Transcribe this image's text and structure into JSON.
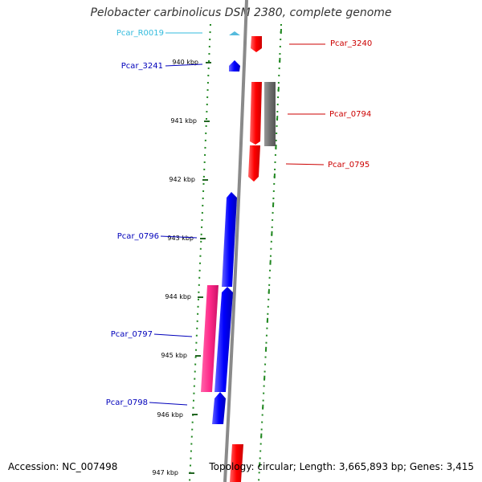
{
  "title": "Pelobacter carbinolicus DSM 2380, complete genome",
  "accession": "Accession: NC_007498",
  "summary": "Topology: circular; Length: 3,665,893 bp; Genes: 3,415",
  "ticks": [
    "940 kbp",
    "941 kbp",
    "942 kbp",
    "943 kbp",
    "944 kbp",
    "945 kbp",
    "946 kbp",
    "947 kbp"
  ],
  "labels": [
    {
      "text": "Pcar_R0019",
      "color": "#33bbdd"
    },
    {
      "text": "Pcar_3241",
      "color": "#0000bb"
    },
    {
      "text": "Pcar_0796",
      "color": "#0000bb"
    },
    {
      "text": "Pcar_0797",
      "color": "#0000bb"
    },
    {
      "text": "Pcar_0798",
      "color": "#0000bb"
    },
    {
      "text": "Pcar_3240",
      "color": "#cc0000"
    },
    {
      "text": "Pcar_0794",
      "color": "#cc0000"
    },
    {
      "text": "Pcar_0795",
      "color": "#cc0000"
    }
  ],
  "colors": {
    "forward_gene": "#ff0000",
    "reverse_gene": "#0000ff",
    "pink_gene": "#ff2a8a",
    "gray_gene": "#707070",
    "rna_gene": "#55bbdd",
    "backbone": "#8a8a8a",
    "dotted_track": "#228822"
  }
}
